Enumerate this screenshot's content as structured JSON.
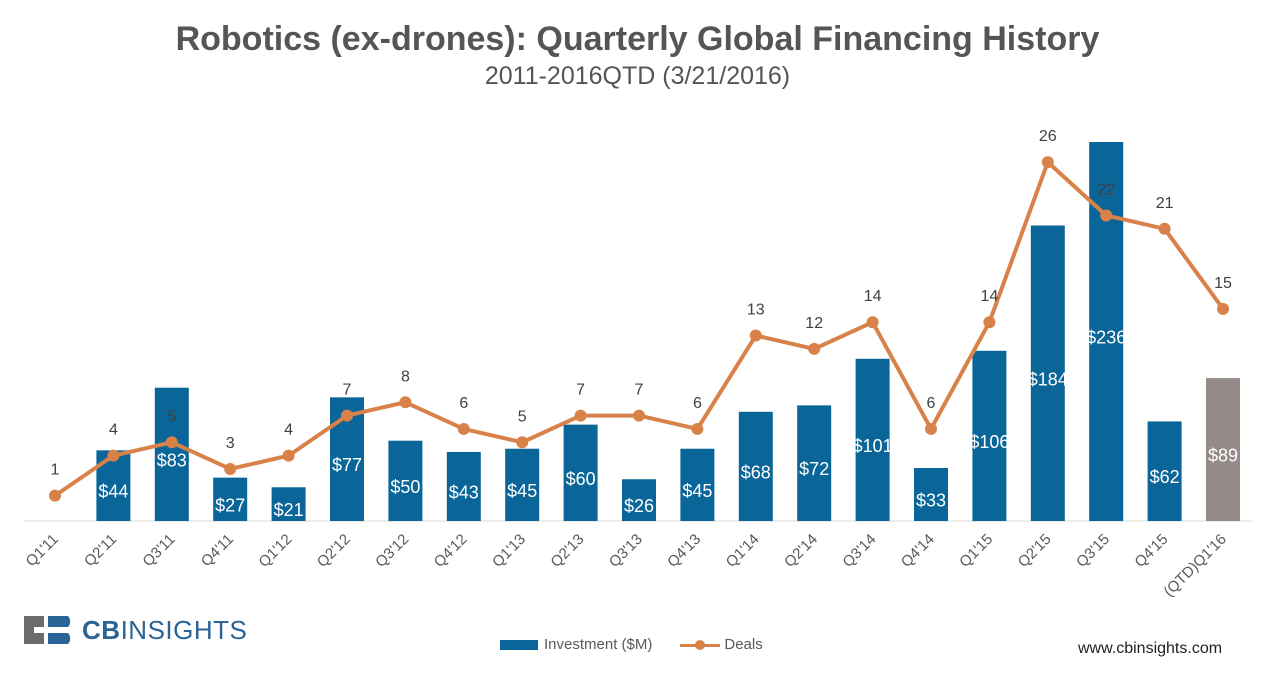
{
  "chart_data": {
    "type": "bar",
    "title": "Robotics (ex-drones): Quarterly Global Financing History",
    "subtitle": "2011-2016QTD (3/21/2016)",
    "categories": [
      "Q1'11",
      "Q2'11",
      "Q3'11",
      "Q4'11",
      "Q1'12",
      "Q2'12",
      "Q3'12",
      "Q4'12",
      "Q1'13",
      "Q2'13",
      "Q3'13",
      "Q4'13",
      "Q1'14",
      "Q2'14",
      "Q3'14",
      "Q4'14",
      "Q1'15",
      "Q2'15",
      "Q3'15",
      "Q4'15",
      "(QTD)Q1'16"
    ],
    "series": [
      {
        "name": "Investment ($M)",
        "type": "bar",
        "values": [
          0,
          44,
          83,
          27,
          21,
          77,
          50,
          43,
          45,
          60,
          26,
          45,
          68,
          72,
          101,
          33,
          106,
          184,
          236,
          62,
          89
        ],
        "labels": [
          "",
          "$44",
          "$83",
          "$27",
          "$21",
          "$77",
          "$50",
          "$43",
          "$45",
          "$60",
          "$26",
          "$45",
          "$68",
          "$72",
          "$101",
          "$33",
          "$106",
          "$184",
          "$236",
          "$62",
          "$89"
        ]
      },
      {
        "name": "Deals",
        "type": "line",
        "values": [
          1,
          4,
          5,
          3,
          4,
          7,
          8,
          6,
          5,
          7,
          7,
          6,
          13,
          12,
          14,
          6,
          14,
          26,
          22,
          21,
          15
        ]
      }
    ],
    "bar_ylim": [
      0,
      250
    ],
    "line_ylim": [
      0,
      28
    ],
    "colors": {
      "bar": "#0a6699",
      "bar_qtd": "#948a87",
      "line": "#d8824a"
    },
    "legend_position": "bottom-center",
    "grid": false
  },
  "branding": {
    "logo_text_bold": "CB",
    "logo_text": "INSIGHTS",
    "website": "www.cbinsights.com"
  }
}
